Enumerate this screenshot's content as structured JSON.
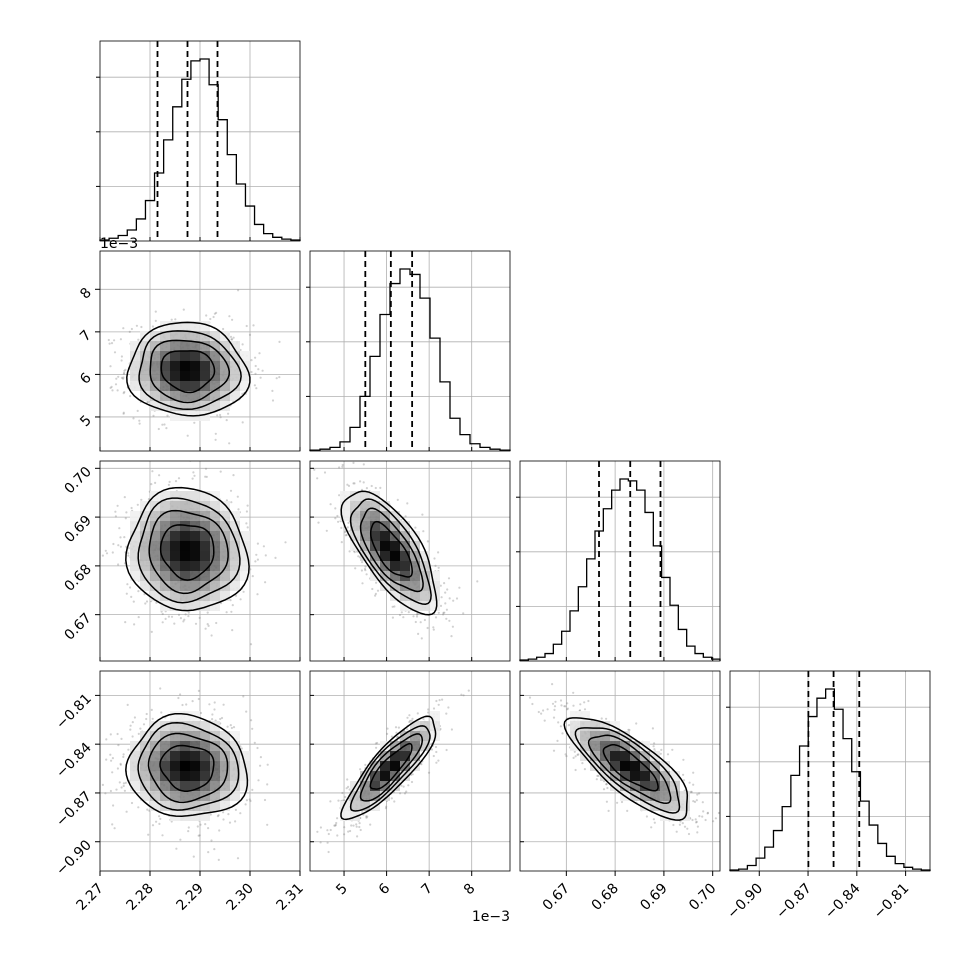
{
  "chart_data": {
    "type": "corner",
    "parameters": [
      {
        "range": [
          2.27,
          2.31
        ],
        "ticks": [
          2.27,
          2.28,
          2.29,
          2.3,
          2.31
        ],
        "tick_labels": [
          "2.27",
          "2.28",
          "2.29",
          "2.30",
          "2.31"
        ],
        "offset_label": "",
        "quantiles": [
          2.2815,
          2.2875,
          2.2935
        ]
      },
      {
        "range": [
          4.2,
          8.9
        ],
        "ticks": [
          5,
          6,
          7,
          8
        ],
        "tick_labels": [
          "5",
          "6",
          "7",
          "8"
        ],
        "offset_label": "1e−3",
        "quantiles": [
          5.5,
          6.1,
          6.6
        ]
      },
      {
        "range": [
          0.6605,
          0.7015
        ],
        "ticks": [
          0.67,
          0.68,
          0.69,
          0.7
        ],
        "tick_labels": [
          "0.67",
          "0.68",
          "0.69",
          "0.70"
        ],
        "offset_label": "",
        "quantiles": [
          0.6767,
          0.6831,
          0.6893
        ]
      },
      {
        "range": [
          -0.918,
          -0.795
        ],
        "ticks": [
          -0.9,
          -0.87,
          -0.84,
          -0.81
        ],
        "tick_labels": [
          "−0.90",
          "−0.87",
          "−0.84",
          "−0.81"
        ],
        "offset_label": "",
        "quantiles": [
          -0.8698,
          -0.8543,
          -0.8385
        ]
      }
    ],
    "histograms": [
      [
        0.5,
        1.5,
        3,
        6,
        12,
        22,
        37,
        55,
        73,
        88,
        98,
        99,
        85,
        66,
        47,
        31,
        19,
        9,
        4,
        2,
        1,
        0.5
      ],
      [
        0.5,
        1,
        2,
        5,
        13,
        30,
        52,
        75,
        92,
        100,
        97,
        84,
        62,
        38,
        18,
        9,
        4,
        2,
        1,
        0.5
      ],
      [
        0.5,
        1,
        2,
        4,
        9,
        16,
        27,
        40,
        55,
        70,
        82,
        92,
        98,
        97,
        92,
        80,
        62,
        45,
        30,
        17,
        8,
        4,
        2,
        1
      ],
      [
        0.5,
        1,
        3,
        7,
        13,
        22,
        35,
        52,
        68,
        84,
        94,
        99,
        88,
        72,
        54,
        38,
        25,
        15,
        8,
        4,
        2,
        1,
        0.5
      ]
    ],
    "contour_levels": [
      0.3935,
      0.8647,
      1.3935,
      1.9889
    ],
    "correlations": {
      "1-0": -0.05,
      "2-0": -0.05,
      "2-1": -0.7,
      "3-0": -0.05,
      "3-1": 0.85,
      "3-2": -0.78
    },
    "grid": true
  }
}
